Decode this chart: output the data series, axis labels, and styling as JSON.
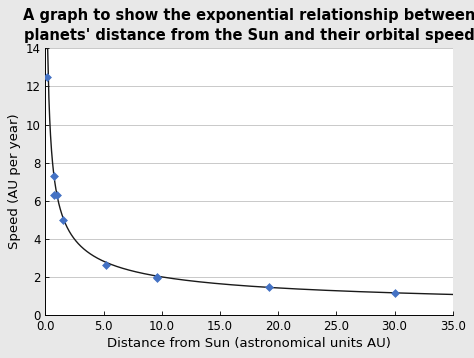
{
  "title": "A graph to show the exponential relationship between\nplanets' distance from the Sun and their orbital speed",
  "xlabel": "Distance from Sun (astronomical units AU)",
  "ylabel": "Speed (AU per year)",
  "scatter_x": [
    0.1,
    0.72,
    0.72,
    1.0,
    1.52,
    5.2,
    9.58,
    9.58,
    19.2,
    30.05
  ],
  "scatter_y": [
    12.5,
    7.3,
    6.3,
    6.28,
    4.97,
    2.62,
    2.0,
    1.95,
    1.43,
    1.12
  ],
  "xlim": [
    0,
    35
  ],
  "ylim": [
    0,
    14
  ],
  "xticks": [
    0.0,
    5.0,
    10.0,
    15.0,
    20.0,
    25.0,
    30.0,
    35.0
  ],
  "yticks": [
    0,
    2,
    4,
    6,
    8,
    10,
    12,
    14
  ],
  "marker_color": "#4472C4",
  "marker_style": "D",
  "marker_size": 4,
  "line_color": "#1a1a1a",
  "curve_A": 1.0,
  "curve_start": 0.04,
  "curve_end": 35,
  "bg_color": "#e8e8e8",
  "plot_bg_color": "#ffffff",
  "title_fontsize": 10.5,
  "label_fontsize": 9.5,
  "tick_fontsize": 8.5,
  "grid_color": "#c0c0c0"
}
